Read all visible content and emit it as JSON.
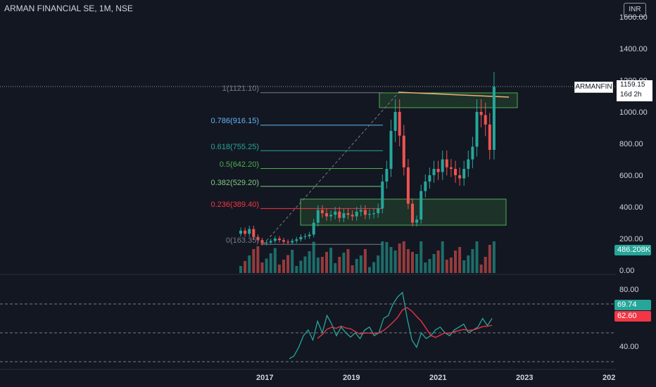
{
  "header": {
    "title": "ARMAN FINANCIAL SE, 1M, NSE",
    "currency": "INR"
  },
  "price_axis": [
    "1600.00",
    "1400.00",
    "1200.00",
    "1000.00",
    "800.00",
    "600.00",
    "400.00",
    "200.00",
    "0.00"
  ],
  "rsi_axis": [
    "80.00",
    "40.00"
  ],
  "time_axis": [
    "2017",
    "2019",
    "2021",
    "2023",
    "202"
  ],
  "last_price": {
    "symbol": "ARMANFIN",
    "price": "1159.15",
    "countdown": "16d 2h"
  },
  "volume_tag": "486.208K",
  "rsi_tags": {
    "rsi": "69.74",
    "ma": "62.60"
  },
  "fib_levels": [
    {
      "label": "1(1121.10)",
      "value": 1121.1,
      "color": "#787b86"
    },
    {
      "label": "0.786(916.15)",
      "value": 916.15,
      "color": "#64b5f6"
    },
    {
      "label": "0.618(755.25)",
      "value": 755.25,
      "color": "#26a69a"
    },
    {
      "label": "0.5(642.20)",
      "value": 642.2,
      "color": "#4caf50"
    },
    {
      "label": "0.382(529.20)",
      "value": 529.2,
      "color": "#81c784"
    },
    {
      "label": "0.236(389.40)",
      "value": 389.4,
      "color": "#f23645"
    },
    {
      "label": "0(163.35)",
      "value": 163.35,
      "color": "#787b86"
    }
  ],
  "colors": {
    "up": "#26a69a",
    "down": "#ef5350",
    "zone": "#4caf50",
    "rsi": "#26a69a",
    "rsi_ma": "#f23645"
  },
  "chart_data": {
    "type": "candlestick",
    "candles_close": [
      250,
      230,
      260,
      210,
      190,
      170,
      175,
      185,
      200,
      190,
      180,
      175,
      185,
      195,
      210,
      215,
      225,
      300,
      380,
      360,
      340,
      350,
      370,
      330,
      360,
      350,
      340,
      370,
      380,
      350,
      355,
      360,
      390,
      560,
      640,
      880,
      1000,
      850,
      650,
      420,
      300,
      320,
      500,
      560,
      600,
      640,
      620,
      700,
      650,
      640,
      600,
      580,
      640,
      700,
      780,
      1000,
      980,
      920,
      760,
      1159
    ],
    "rsi": [
      42,
      44,
      50,
      58,
      62,
      55,
      68,
      60,
      72,
      66,
      58,
      64,
      60,
      57,
      60,
      56,
      62,
      64,
      58,
      60,
      70,
      72,
      80,
      85,
      88,
      70,
      55,
      50,
      60,
      56,
      58,
      62,
      64,
      60,
      58,
      62,
      64,
      66,
      60,
      62,
      64,
      70,
      65,
      70
    ]
  }
}
